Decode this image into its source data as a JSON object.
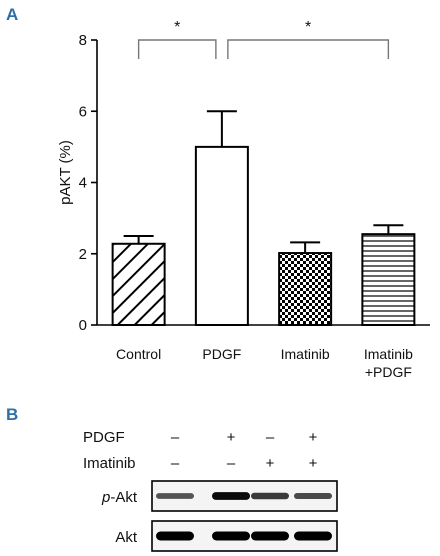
{
  "panel_a_label": "A",
  "panel_b_label": "B",
  "chart_data": {
    "type": "bar",
    "ylabel": "pAKT (%)",
    "xlabel": "",
    "ylim": [
      0,
      8
    ],
    "yticks": [
      "0",
      "2",
      "4",
      "6",
      "8"
    ],
    "categories": [
      [
        "Control"
      ],
      [
        "PDGF"
      ],
      [
        "Imatinib"
      ],
      [
        "Imatinib",
        "+PDGF"
      ]
    ],
    "values": [
      2.28,
      5.0,
      2.02,
      2.55
    ],
    "errors": [
      0.22,
      1.0,
      0.3,
      0.25
    ],
    "patterns": [
      "diagonal",
      "none",
      "checker",
      "horizontal"
    ],
    "significance": [
      {
        "from": 0,
        "to": 1,
        "label": "*"
      },
      {
        "from": 1,
        "to": 3,
        "label": "*"
      }
    ]
  },
  "blot": {
    "rows": [
      {
        "label": "PDGF",
        "signs": [
          "–",
          "+",
          "–",
          "+"
        ]
      },
      {
        "label": "Imatinib",
        "signs": [
          "–",
          "–",
          "+",
          "+"
        ]
      }
    ],
    "bands": [
      {
        "label_italic": "p",
        "label_rest": "-Akt",
        "intensity": [
          0.55,
          0.95,
          0.7,
          0.6
        ]
      },
      {
        "label_italic": "",
        "label_rest": "Akt",
        "intensity": [
          1.0,
          1.0,
          1.0,
          1.0
        ]
      }
    ]
  }
}
